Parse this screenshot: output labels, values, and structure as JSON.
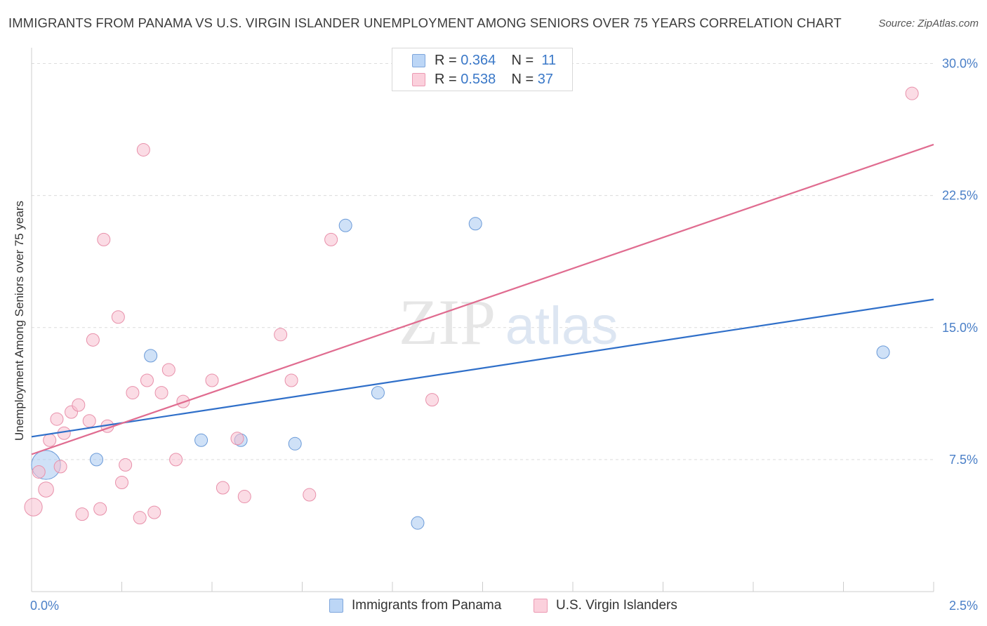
{
  "title": "IMMIGRANTS FROM PANAMA VS U.S. VIRGIN ISLANDER UNEMPLOYMENT AMONG SENIORS OVER 75 YEARS CORRELATION CHART",
  "source": "Source: ZipAtlas.com",
  "watermark": {
    "zip": "ZIP",
    "atlas": "atlas"
  },
  "legend": {
    "r_label": "R =",
    "n_label": "N =",
    "panama": {
      "r": "0.364",
      "n": "11"
    },
    "virgin": {
      "r": "0.538",
      "n": "37"
    }
  },
  "chart_data": {
    "type": "scatter",
    "ylabel": "Unemployment Among Seniors over 75 years",
    "xlim": [
      0,
      2.5
    ],
    "ylim": [
      0,
      30.5
    ],
    "x_tick_labels": [
      {
        "value": 0,
        "label": "0.0%"
      },
      {
        "value": 2.5,
        "label": "2.5%"
      }
    ],
    "y_tick_labels": [
      {
        "value": 7.5,
        "label": "7.5%"
      },
      {
        "value": 15,
        "label": "15.0%"
      },
      {
        "value": 22.5,
        "label": "22.5%"
      },
      {
        "value": 30,
        "label": "30.0%"
      }
    ],
    "series": [
      {
        "name": "Immigrants from Panama",
        "color": "#a8c8f0",
        "edge": "#6a9ad8",
        "line_color": "#2f6fc9",
        "trend": {
          "x0": 0,
          "y0": 8.8,
          "x1": 2.5,
          "y1": 16.6
        },
        "points": [
          {
            "x": 0.04,
            "y": 7.2,
            "s": 2.3
          },
          {
            "x": 0.18,
            "y": 7.5,
            "s": 1
          },
          {
            "x": 0.33,
            "y": 13.4,
            "s": 1
          },
          {
            "x": 0.47,
            "y": 8.6,
            "s": 1
          },
          {
            "x": 0.58,
            "y": 8.6,
            "s": 1
          },
          {
            "x": 0.73,
            "y": 8.4,
            "s": 1
          },
          {
            "x": 0.87,
            "y": 20.8,
            "s": 1
          },
          {
            "x": 0.96,
            "y": 11.3,
            "s": 1
          },
          {
            "x": 1.07,
            "y": 3.9,
            "s": 1
          },
          {
            "x": 1.23,
            "y": 20.9,
            "s": 1
          },
          {
            "x": 2.36,
            "y": 13.6,
            "s": 1
          }
        ]
      },
      {
        "name": "U.S. Virgin Islanders",
        "color": "#f8c0d0",
        "edge": "#e890aa",
        "line_color": "#e06c90",
        "trend": {
          "x0": 0,
          "y0": 7.8,
          "x1": 2.5,
          "y1": 25.4
        },
        "points": [
          {
            "x": 0.005,
            "y": 4.8,
            "s": 1.4
          },
          {
            "x": 0.02,
            "y": 6.8,
            "s": 1
          },
          {
            "x": 0.04,
            "y": 5.8,
            "s": 1.2
          },
          {
            "x": 0.05,
            "y": 8.6,
            "s": 1
          },
          {
            "x": 0.07,
            "y": 9.8,
            "s": 1
          },
          {
            "x": 0.08,
            "y": 7.1,
            "s": 1
          },
          {
            "x": 0.09,
            "y": 9.0,
            "s": 1
          },
          {
            "x": 0.11,
            "y": 10.2,
            "s": 1
          },
          {
            "x": 0.13,
            "y": 10.6,
            "s": 1
          },
          {
            "x": 0.14,
            "y": 4.4,
            "s": 1
          },
          {
            "x": 0.16,
            "y": 9.7,
            "s": 1
          },
          {
            "x": 0.17,
            "y": 14.3,
            "s": 1
          },
          {
            "x": 0.19,
            "y": 4.7,
            "s": 1
          },
          {
            "x": 0.2,
            "y": 20.0,
            "s": 1
          },
          {
            "x": 0.21,
            "y": 9.4,
            "s": 1
          },
          {
            "x": 0.24,
            "y": 15.6,
            "s": 1
          },
          {
            "x": 0.25,
            "y": 6.2,
            "s": 1
          },
          {
            "x": 0.26,
            "y": 7.2,
            "s": 1
          },
          {
            "x": 0.28,
            "y": 11.3,
            "s": 1
          },
          {
            "x": 0.3,
            "y": 4.2,
            "s": 1
          },
          {
            "x": 0.31,
            "y": 25.1,
            "s": 1
          },
          {
            "x": 0.32,
            "y": 12.0,
            "s": 1
          },
          {
            "x": 0.34,
            "y": 4.5,
            "s": 1
          },
          {
            "x": 0.36,
            "y": 11.3,
            "s": 1
          },
          {
            "x": 0.38,
            "y": 12.6,
            "s": 1
          },
          {
            "x": 0.4,
            "y": 7.5,
            "s": 1
          },
          {
            "x": 0.42,
            "y": 10.8,
            "s": 1
          },
          {
            "x": 0.5,
            "y": 12.0,
            "s": 1
          },
          {
            "x": 0.53,
            "y": 5.9,
            "s": 1
          },
          {
            "x": 0.57,
            "y": 8.7,
            "s": 1
          },
          {
            "x": 0.59,
            "y": 5.4,
            "s": 1
          },
          {
            "x": 0.69,
            "y": 14.6,
            "s": 1
          },
          {
            "x": 0.72,
            "y": 12.0,
            "s": 1
          },
          {
            "x": 0.77,
            "y": 5.5,
            "s": 1
          },
          {
            "x": 0.83,
            "y": 20.0,
            "s": 1
          },
          {
            "x": 1.11,
            "y": 10.9,
            "s": 1
          },
          {
            "x": 2.44,
            "y": 28.3,
            "s": 1
          }
        ]
      }
    ]
  }
}
